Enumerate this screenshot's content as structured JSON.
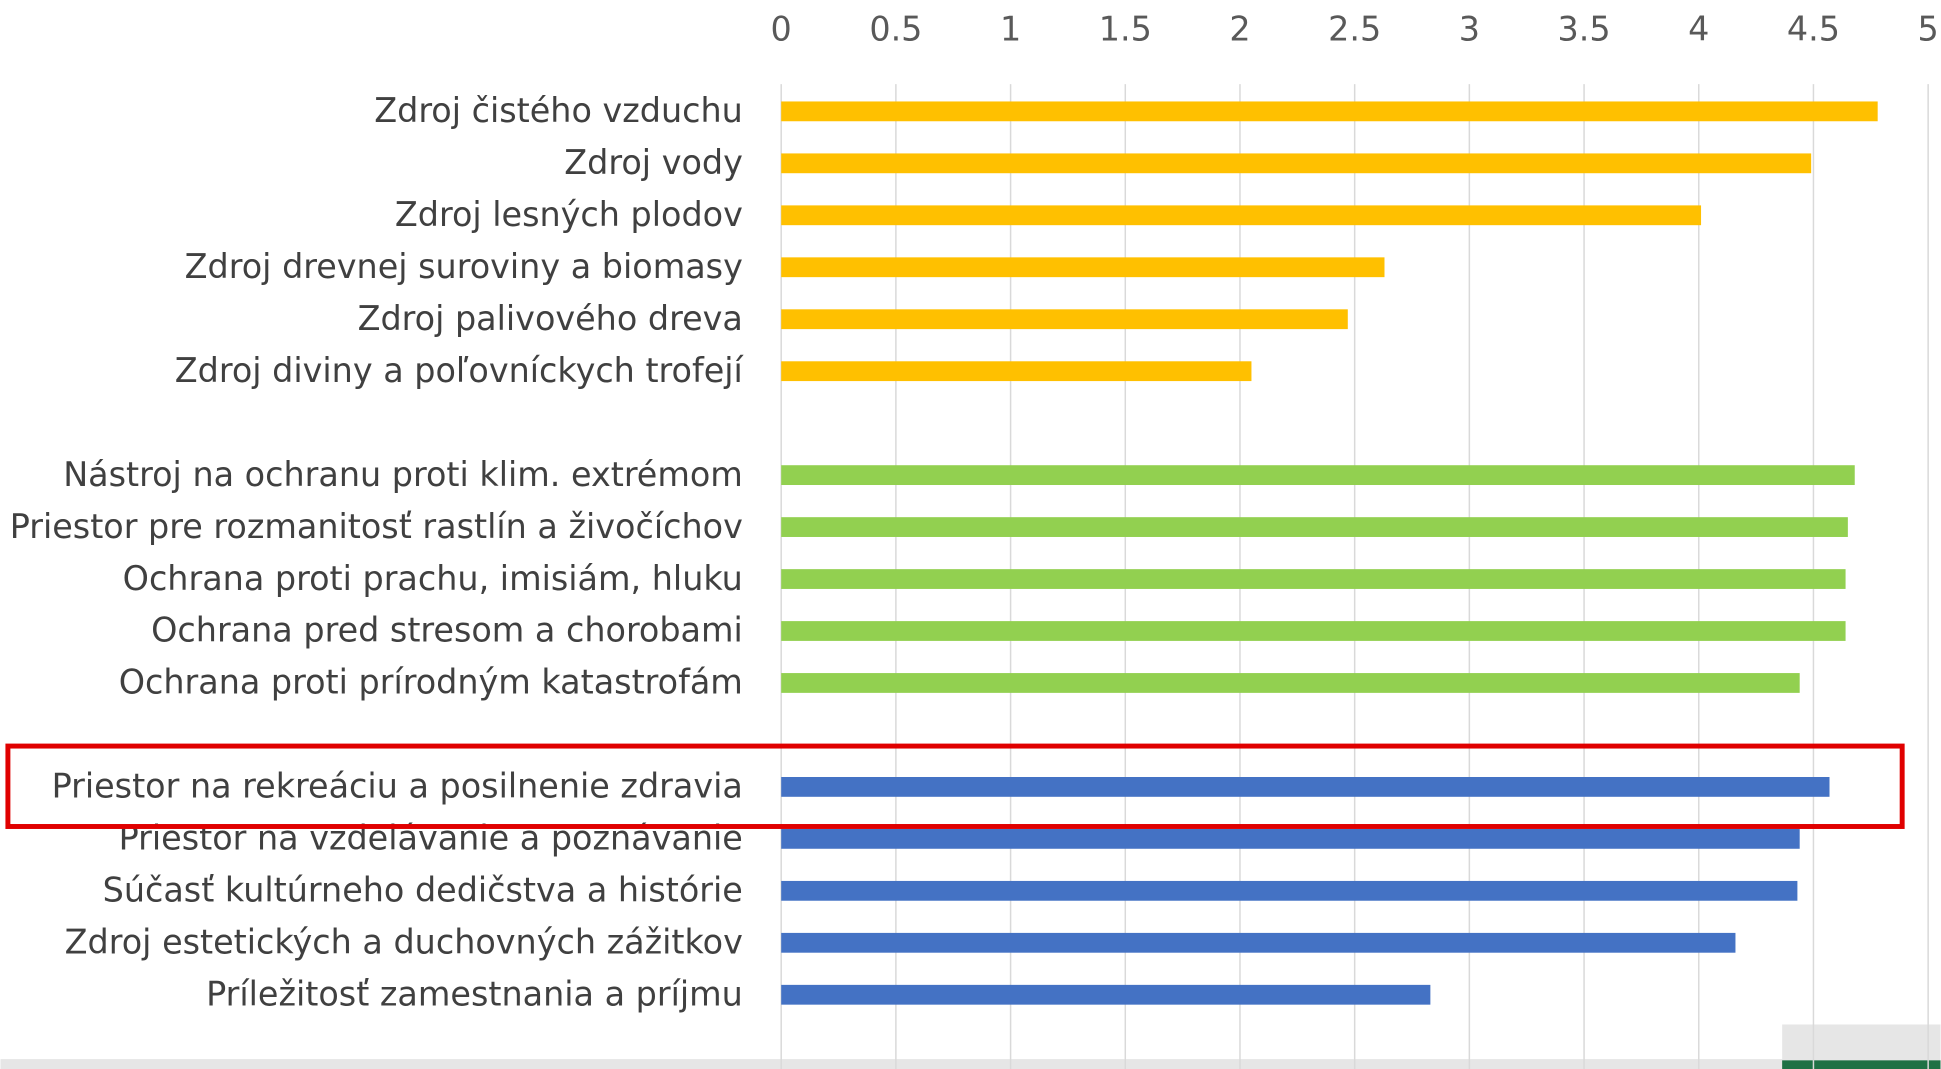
{
  "chart_data": {
    "type": "bar",
    "orientation": "horizontal",
    "categories": [
      "Zdroj čistého vzduchu",
      "Zdroj vody",
      "Zdroj lesných plodov",
      "Zdroj drevnej suroviny a biomasy",
      "Zdroj palivového dreva",
      "Zdroj diviny a poľovníckych trofejí",
      null,
      "Nástroj na ochranu proti klim. extrémom",
      "Priestor pre rozmanitosť rastlín a živočíchov",
      "Ochrana proti prachu, imisiám, hluku",
      "Ochrana pred stresom a chorobami",
      "Ochrana proti prírodným katastrofám",
      null,
      "Priestor na rekreáciu a posilnenie zdravia",
      "Priestor na vzdelávanie a poznávanie",
      "Súčasť kultúrneho dedičstva a histórie",
      "Zdroj estetických a duchovných zážitkov",
      "Príležitosť zamestnania a príjmu"
    ],
    "series": [
      {
        "color": "#FFC000",
        "values": [
          4.78,
          4.49,
          4.01,
          2.63,
          2.47,
          2.05,
          null,
          null,
          null,
          null,
          null,
          null,
          null,
          null,
          null,
          null,
          null,
          null
        ]
      },
      {
        "color": "#92D050",
        "values": [
          null,
          null,
          null,
          null,
          null,
          null,
          null,
          4.68,
          4.65,
          4.64,
          4.64,
          4.44,
          null,
          null,
          null,
          null,
          null,
          null
        ]
      },
      {
        "color": "#4472C4",
        "values": [
          null,
          null,
          null,
          null,
          null,
          null,
          null,
          null,
          null,
          null,
          null,
          null,
          null,
          4.57,
          4.44,
          4.43,
          4.16,
          2.83
        ]
      }
    ],
    "xlim": [
      0,
      5
    ],
    "xticks": [
      0,
      0.5,
      1,
      1.5,
      2,
      2.5,
      3,
      3.5,
      4,
      4.5,
      5
    ],
    "grid": true,
    "highlight_category": 13
  }
}
